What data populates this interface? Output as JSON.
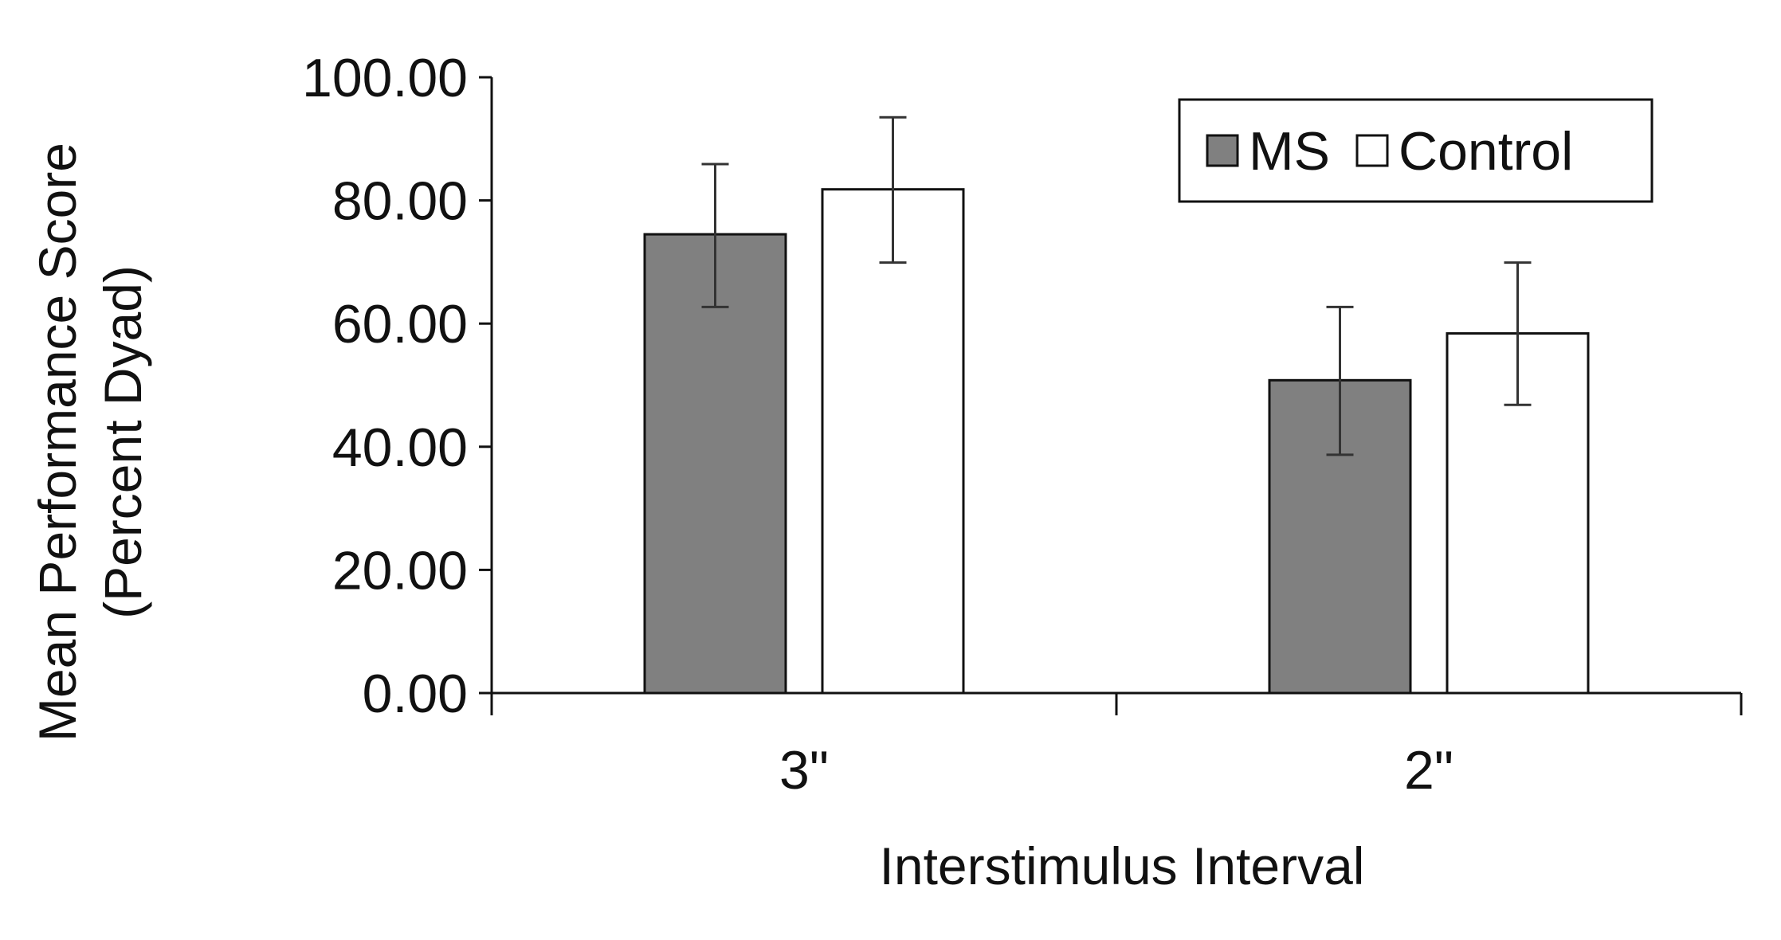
{
  "chart_data": {
    "type": "bar",
    "title": "",
    "xlabel": "Interstimulus Interval",
    "ylabel_lines": [
      "Mean Performance Score",
      "(Percent Dyad)"
    ],
    "categories": [
      "3\"",
      "2\""
    ],
    "series": [
      {
        "name": "MS",
        "color": "#808080",
        "values": [
          74.5,
          50.8
        ],
        "error_low": [
          62.7,
          38.7
        ],
        "error_high": [
          85.9,
          62.7
        ]
      },
      {
        "name": "Control",
        "color": "#ffffff",
        "values": [
          81.8,
          58.4
        ],
        "error_low": [
          69.9,
          46.8
        ],
        "error_high": [
          93.5,
          69.9
        ]
      }
    ],
    "ylim": [
      0,
      100
    ],
    "yticks": [
      "0.00",
      "20.00",
      "40.00",
      "60.00",
      "80.00",
      "100.00"
    ],
    "grid": false,
    "legend_position": "top-right"
  }
}
